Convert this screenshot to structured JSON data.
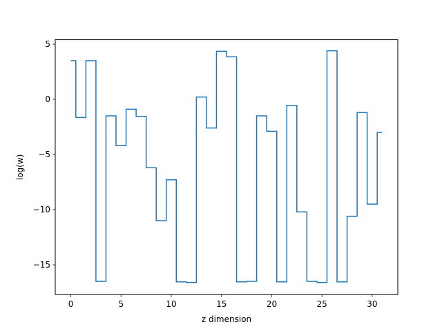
{
  "chart_data": {
    "type": "line",
    "drawstyle": "steps-mid",
    "title": "",
    "xlabel": "z dimension",
    "ylabel": "log(w)",
    "xlim": [
      -1.55,
      32.55
    ],
    "ylim": [
      -17.7,
      5.4
    ],
    "xticks": [
      0,
      5,
      10,
      15,
      20,
      25,
      30
    ],
    "yticks": [
      5,
      0,
      -5,
      -10,
      -15
    ],
    "ytick_labels": [
      "5",
      "0",
      "−5",
      "−10",
      "−15"
    ],
    "grid": false,
    "legend": "none",
    "line_color": "#1f77b4",
    "series": [
      {
        "x": [
          0,
          1,
          2,
          3,
          4,
          5,
          6,
          7,
          8,
          9,
          10,
          11,
          12,
          13,
          14,
          15,
          16,
          17,
          18,
          19,
          20,
          21,
          22,
          23,
          24,
          25,
          26,
          27,
          28,
          29,
          30,
          31
        ],
        "values": [
          3.5,
          -1.65,
          3.5,
          -16.5,
          -1.5,
          -4.2,
          -0.9,
          -1.55,
          -6.2,
          -11.0,
          -7.3,
          -16.55,
          -16.6,
          0.2,
          -2.6,
          4.35,
          3.85,
          -16.55,
          -16.5,
          -1.5,
          -2.9,
          -16.55,
          -0.55,
          -10.2,
          -16.5,
          -16.6,
          4.4,
          -16.55,
          -10.6,
          -1.2,
          -9.5,
          -3.0
        ]
      }
    ]
  }
}
